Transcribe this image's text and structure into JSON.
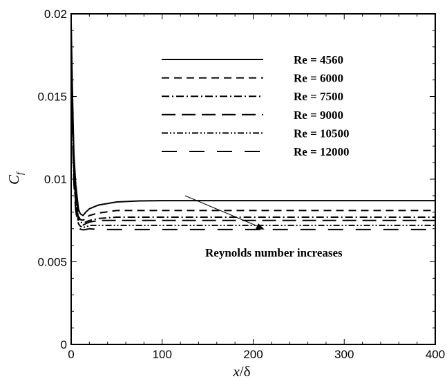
{
  "chart_data": {
    "type": "line",
    "xlabel": "x/δ",
    "ylabel": "C_f",
    "ylabel_main": "C",
    "ylabel_sub": "f",
    "xlabel_var": "x",
    "xlabel_sep": "/δ",
    "xlim": [
      0,
      400
    ],
    "ylim": [
      0,
      0.02
    ],
    "x_ticks": [
      0,
      100,
      200,
      300,
      400
    ],
    "x_tick_labels": [
      "0",
      "100",
      "200",
      "300",
      "400"
    ],
    "y_ticks": [
      0,
      0.005,
      0.01,
      0.015,
      0.02
    ],
    "y_tick_labels": [
      "0",
      "0.005",
      "0.01",
      "0.015",
      "0.02"
    ],
    "grid": false,
    "legend_position": "top-right",
    "annotation": "Reynolds number increases",
    "series": [
      {
        "name": "Re = 4560",
        "dash": "solid",
        "x": [
          0,
          1,
          2,
          3,
          5,
          8,
          10,
          13,
          16,
          20,
          30,
          50,
          75,
          100,
          150,
          200,
          300,
          400
        ],
        "y": [
          0.0195,
          0.0165,
          0.0138,
          0.0115,
          0.0097,
          0.0082,
          0.0079,
          0.0078,
          0.008,
          0.0082,
          0.00843,
          0.00862,
          0.00868,
          0.0087,
          0.0087,
          0.0087,
          0.0087,
          0.0087
        ]
      },
      {
        "name": "Re = 6000",
        "dash": "dash",
        "x": [
          0,
          1,
          2,
          3,
          5,
          8,
          10,
          13,
          16,
          20,
          30,
          50,
          75,
          100,
          150,
          200,
          300,
          400
        ],
        "y": [
          0.019,
          0.016,
          0.0132,
          0.011,
          0.0092,
          0.0078,
          0.00755,
          0.00752,
          0.0076,
          0.0078,
          0.00795,
          0.0081,
          0.0081,
          0.0081,
          0.0081,
          0.0081,
          0.0081,
          0.0081
        ]
      },
      {
        "name": "Re = 7500",
        "dash": "dashdot",
        "x": [
          0,
          1,
          2,
          3,
          5,
          8,
          10,
          13,
          16,
          20,
          30,
          50,
          75,
          100,
          150,
          200,
          300,
          400
        ],
        "y": [
          0.0185,
          0.0155,
          0.0128,
          0.0106,
          0.0089,
          0.0076,
          0.0074,
          0.00735,
          0.0074,
          0.0075,
          0.00762,
          0.0077,
          0.0077,
          0.0077,
          0.0077,
          0.0077,
          0.0077,
          0.0077
        ]
      },
      {
        "name": "Re = 9000",
        "dash": "longdash",
        "x": [
          0,
          1,
          2,
          3,
          5,
          8,
          10,
          13,
          16,
          20,
          30,
          50,
          75,
          100,
          150,
          200,
          300,
          400
        ],
        "y": [
          0.018,
          0.015,
          0.0124,
          0.0103,
          0.0086,
          0.00745,
          0.0073,
          0.00722,
          0.0073,
          0.0074,
          0.0075,
          0.0075,
          0.0075,
          0.0075,
          0.0075,
          0.0075,
          0.0075,
          0.0075
        ]
      },
      {
        "name": "Re = 10500",
        "dash": "dashdotdot",
        "x": [
          0,
          1,
          2,
          3,
          5,
          8,
          10,
          13,
          16,
          20,
          30,
          50,
          75,
          100,
          150,
          200,
          300,
          400
        ],
        "y": [
          0.0175,
          0.0145,
          0.012,
          0.01,
          0.0084,
          0.0073,
          0.00715,
          0.00708,
          0.0071,
          0.0072,
          0.0072,
          0.0072,
          0.0072,
          0.0072,
          0.0072,
          0.0072,
          0.0072,
          0.0072
        ]
      },
      {
        "name": "Re = 12000",
        "dash": "verylongdash",
        "x": [
          0,
          1,
          2,
          3,
          5,
          8,
          10,
          13,
          16,
          20,
          30,
          50,
          75,
          100,
          150,
          200,
          300,
          400
        ],
        "y": [
          0.017,
          0.014,
          0.0116,
          0.0097,
          0.0081,
          0.0071,
          0.00698,
          0.00693,
          0.00695,
          0.007,
          0.00695,
          0.00695,
          0.00695,
          0.00695,
          0.00695,
          0.00695,
          0.00695,
          0.00695
        ]
      }
    ]
  }
}
